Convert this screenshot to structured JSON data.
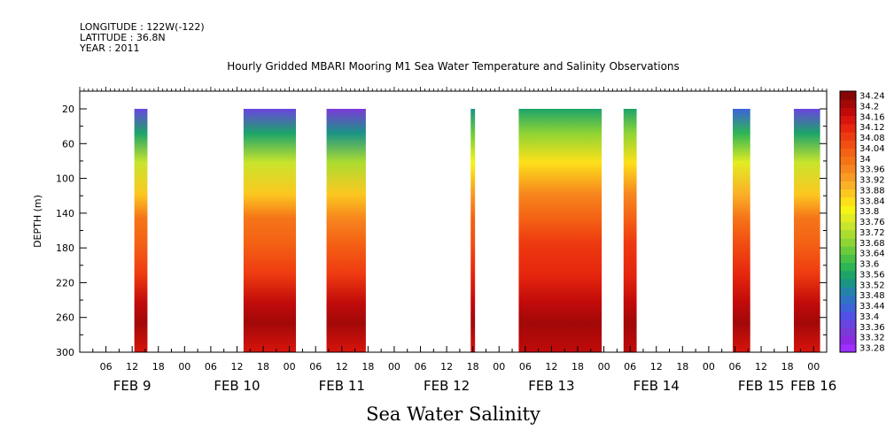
{
  "header": {
    "longitude": "LONGITUDE : 122W(-122)",
    "latitude": "LATITUDE : 36.8N",
    "year": "YEAR : 2011"
  },
  "title": "Hourly Gridded MBARI Mooring M1 Sea Water Temperature and Salinity Observations",
  "bottom_title": "Sea Water Salinity",
  "colors": {
    "levels": [
      "#9b30ff",
      "#8a2be2",
      "#7b3ad8",
      "#6a44e0",
      "#5050e6",
      "#3d63d8",
      "#2f73c4",
      "#2384a8",
      "#1a9486",
      "#1ca46a",
      "#2eb556",
      "#49c046",
      "#6ccb3c",
      "#8ed434",
      "#abdc30",
      "#c8e42c",
      "#e2ec22",
      "#f7f414",
      "#fde01a",
      "#fcc820",
      "#fbb028",
      "#f99a24",
      "#f7861e",
      "#f57418",
      "#f46214",
      "#f24e12",
      "#ee3a10",
      "#e6260e",
      "#d8140c",
      "#c00a0a",
      "#a20808",
      "#860606"
    ]
  },
  "chart_data": {
    "type": "heatmap",
    "ylabel": "DEPTH (m)",
    "y_ticks": [
      20,
      60,
      100,
      140,
      180,
      220,
      260,
      300
    ],
    "y_tick_labels": [
      "20",
      "60",
      "100",
      "140",
      "180",
      "220",
      "260",
      "300"
    ],
    "ylim": [
      300,
      0
    ],
    "x_hour_ticks": [
      {
        "t": 6,
        "label": "06"
      },
      {
        "t": 12,
        "label": "12"
      },
      {
        "t": 18,
        "label": "18"
      },
      {
        "t": 24,
        "label": "00"
      },
      {
        "t": 30,
        "label": "06"
      },
      {
        "t": 36,
        "label": "12"
      },
      {
        "t": 42,
        "label": "18"
      },
      {
        "t": 48,
        "label": "00"
      },
      {
        "t": 54,
        "label": "06"
      },
      {
        "t": 60,
        "label": "12"
      },
      {
        "t": 66,
        "label": "18"
      },
      {
        "t": 72,
        "label": "00"
      },
      {
        "t": 78,
        "label": "06"
      },
      {
        "t": 84,
        "label": "12"
      },
      {
        "t": 90,
        "label": "18"
      },
      {
        "t": 96,
        "label": "00"
      },
      {
        "t": 102,
        "label": "06"
      },
      {
        "t": 108,
        "label": "12"
      },
      {
        "t": 114,
        "label": "18"
      },
      {
        "t": 120,
        "label": "00"
      },
      {
        "t": 126,
        "label": "06"
      },
      {
        "t": 132,
        "label": "12"
      },
      {
        "t": 138,
        "label": "18"
      },
      {
        "t": 144,
        "label": "00"
      },
      {
        "t": 150,
        "label": "06"
      },
      {
        "t": 156,
        "label": "12"
      },
      {
        "t": 162,
        "label": "18"
      },
      {
        "t": 168,
        "label": "00"
      }
    ],
    "x_day_labels": [
      {
        "t": 12,
        "label": "FEB  9"
      },
      {
        "t": 36,
        "label": "FEB 10"
      },
      {
        "t": 60,
        "label": "FEB 11"
      },
      {
        "t": 84,
        "label": "FEB 12"
      },
      {
        "t": 108,
        "label": "FEB 13"
      },
      {
        "t": 132,
        "label": "FEB 14"
      },
      {
        "t": 156,
        "label": "FEB 15"
      },
      {
        "t": 168,
        "label": "FEB 16"
      }
    ],
    "xlim_hours": [
      0,
      171
    ],
    "observation_segments": [
      {
        "start": 12.5,
        "end": 15.5,
        "surface": 33.4
      },
      {
        "start": 37.5,
        "end": 49.5,
        "surface": 33.4
      },
      {
        "start": 56.5,
        "end": 65.5,
        "surface": 33.36
      },
      {
        "start": 89.5,
        "end": 90.5,
        "surface": 33.52
      },
      {
        "start": 100.5,
        "end": 119.5,
        "surface": 33.56
      },
      {
        "start": 124.5,
        "end": 127.5,
        "surface": 33.56
      },
      {
        "start": 149.5,
        "end": 153.5,
        "surface": 33.44
      },
      {
        "start": 163.5,
        "end": 169.5,
        "surface": 33.4
      }
    ],
    "colorbar_labels": [
      "34.24",
      "34.2",
      "34.16",
      "34.12",
      "34.08",
      "34.04",
      "34",
      "33.96",
      "33.92",
      "33.88",
      "33.84",
      "33.8",
      "33.76",
      "33.72",
      "33.68",
      "33.64",
      "33.6",
      "33.56",
      "33.52",
      "33.48",
      "33.44",
      "33.4",
      "33.36",
      "33.32",
      "33.28"
    ],
    "value_range": [
      33.28,
      34.24
    ]
  }
}
